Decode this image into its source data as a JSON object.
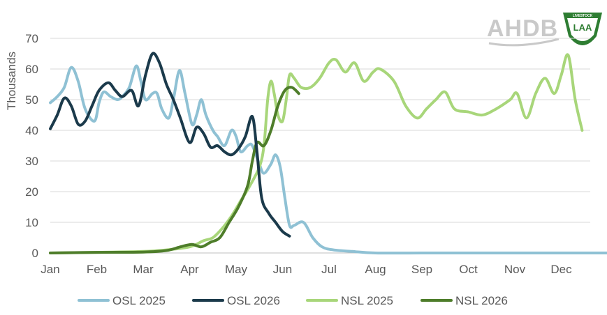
{
  "logos": {
    "ahdb": "AHDB",
    "laa": "LAA",
    "laa_ring": "LIVESTOCK"
  },
  "colors": {
    "osl2025": "#8fc1d4",
    "osl2026": "#1b3a4b",
    "nsl2025": "#a8d67a",
    "nsl2026": "#4e7d2a",
    "grid": "#d9d9d9",
    "text": "#595959"
  },
  "chart_data": {
    "type": "line",
    "ylabel": "Thousands",
    "ylim": [
      0,
      70
    ],
    "yticks": [
      0,
      10,
      20,
      30,
      40,
      50,
      60,
      70
    ],
    "xlim": [
      0,
      12
    ],
    "months": [
      "Jan",
      "Feb",
      "Mar",
      "Apr",
      "May",
      "Jun",
      "Jul",
      "Aug",
      "Sep",
      "Oct",
      "Nov",
      "Dec"
    ],
    "grid": "horizontal",
    "legend": "bottom",
    "series": [
      {
        "name": "OSL 2025",
        "color": "#8fc1d4",
        "points": [
          [
            0,
            49
          ],
          [
            0.15,
            51
          ],
          [
            0.3,
            54
          ],
          [
            0.45,
            60.5
          ],
          [
            0.6,
            56
          ],
          [
            0.75,
            47
          ],
          [
            0.95,
            43
          ],
          [
            1.05,
            49
          ],
          [
            1.15,
            52.5
          ],
          [
            1.3,
            51
          ],
          [
            1.45,
            50
          ],
          [
            1.55,
            51
          ],
          [
            1.7,
            54
          ],
          [
            1.85,
            61
          ],
          [
            1.95,
            56
          ],
          [
            2.05,
            50
          ],
          [
            2.2,
            52
          ],
          [
            2.3,
            52
          ],
          [
            2.4,
            47
          ],
          [
            2.55,
            44
          ],
          [
            2.65,
            50
          ],
          [
            2.78,
            59.5
          ],
          [
            2.9,
            52
          ],
          [
            3.05,
            42
          ],
          [
            3.15,
            45
          ],
          [
            3.25,
            50
          ],
          [
            3.35,
            45
          ],
          [
            3.5,
            40
          ],
          [
            3.6,
            38
          ],
          [
            3.75,
            35
          ],
          [
            3.9,
            40
          ],
          [
            4.0,
            38
          ],
          [
            4.1,
            33
          ],
          [
            4.25,
            35
          ],
          [
            4.35,
            35
          ],
          [
            4.5,
            29
          ],
          [
            4.6,
            26
          ],
          [
            4.75,
            29
          ],
          [
            4.85,
            32
          ],
          [
            4.95,
            28
          ],
          [
            5.05,
            18
          ],
          [
            5.15,
            9
          ],
          [
            5.25,
            9
          ],
          [
            5.45,
            10
          ],
          [
            5.65,
            5
          ],
          [
            5.85,
            2
          ],
          [
            6.1,
            1
          ],
          [
            6.5,
            0.5
          ],
          [
            7,
            0
          ],
          [
            8,
            0
          ],
          [
            9,
            0
          ],
          [
            10,
            0
          ],
          [
            11,
            0
          ],
          [
            12,
            0
          ]
        ]
      },
      {
        "name": "OSL 2026",
        "color": "#1b3a4b",
        "points": [
          [
            0,
            40.5
          ],
          [
            0.15,
            45
          ],
          [
            0.3,
            50.5
          ],
          [
            0.45,
            48
          ],
          [
            0.6,
            42
          ],
          [
            0.75,
            43
          ],
          [
            0.9,
            48
          ],
          [
            1.05,
            53
          ],
          [
            1.25,
            55.5
          ],
          [
            1.4,
            53
          ],
          [
            1.55,
            51
          ],
          [
            1.75,
            53
          ],
          [
            1.9,
            48
          ],
          [
            2.05,
            58
          ],
          [
            2.2,
            65
          ],
          [
            2.35,
            62
          ],
          [
            2.5,
            55
          ],
          [
            2.65,
            50
          ],
          [
            2.8,
            44
          ],
          [
            3.0,
            36
          ],
          [
            3.15,
            41
          ],
          [
            3.3,
            39
          ],
          [
            3.45,
            34.5
          ],
          [
            3.6,
            35
          ],
          [
            3.75,
            33
          ],
          [
            3.9,
            32
          ],
          [
            4.05,
            34
          ],
          [
            4.2,
            38
          ],
          [
            4.35,
            44.5
          ],
          [
            4.45,
            33
          ],
          [
            4.55,
            18
          ],
          [
            4.7,
            13
          ],
          [
            4.85,
            10
          ],
          [
            5.0,
            7
          ],
          [
            5.15,
            5.5
          ]
        ]
      },
      {
        "name": "NSL 2025",
        "color": "#a8d67a",
        "points": [
          [
            0,
            0
          ],
          [
            1,
            0.2
          ],
          [
            2,
            0.5
          ],
          [
            2.5,
            1
          ],
          [
            3,
            2
          ],
          [
            3.3,
            4
          ],
          [
            3.5,
            5
          ],
          [
            3.7,
            8
          ],
          [
            3.9,
            12
          ],
          [
            4.1,
            17
          ],
          [
            4.3,
            22
          ],
          [
            4.5,
            28
          ],
          [
            4.6,
            35
          ],
          [
            4.68,
            50
          ],
          [
            4.75,
            56
          ],
          [
            4.82,
            52
          ],
          [
            4.9,
            45
          ],
          [
            5.0,
            43
          ],
          [
            5.08,
            50
          ],
          [
            5.15,
            58
          ],
          [
            5.25,
            57
          ],
          [
            5.4,
            54
          ],
          [
            5.6,
            54
          ],
          [
            5.8,
            57
          ],
          [
            6.0,
            62
          ],
          [
            6.15,
            63
          ],
          [
            6.35,
            59
          ],
          [
            6.55,
            62
          ],
          [
            6.75,
            56
          ],
          [
            6.95,
            59
          ],
          [
            7.1,
            60
          ],
          [
            7.4,
            56
          ],
          [
            7.65,
            48
          ],
          [
            7.9,
            44
          ],
          [
            8.1,
            47
          ],
          [
            8.3,
            50
          ],
          [
            8.5,
            52.5
          ],
          [
            8.7,
            47
          ],
          [
            9.0,
            46
          ],
          [
            9.3,
            45
          ],
          [
            9.6,
            47
          ],
          [
            9.9,
            50
          ],
          [
            10.05,
            52
          ],
          [
            10.25,
            44
          ],
          [
            10.45,
            52
          ],
          [
            10.65,
            57
          ],
          [
            10.85,
            52
          ],
          [
            11.0,
            58
          ],
          [
            11.15,
            64.5
          ],
          [
            11.3,
            50
          ],
          [
            11.45,
            40
          ]
        ]
      },
      {
        "name": "NSL 2026",
        "color": "#4e7d2a",
        "points": [
          [
            0,
            0
          ],
          [
            1,
            0.2
          ],
          [
            2,
            0.3
          ],
          [
            2.5,
            0.8
          ],
          [
            2.8,
            2
          ],
          [
            3.05,
            2.8
          ],
          [
            3.25,
            2
          ],
          [
            3.45,
            3.5
          ],
          [
            3.65,
            5
          ],
          [
            3.85,
            10
          ],
          [
            4.05,
            15
          ],
          [
            4.25,
            22
          ],
          [
            4.35,
            30
          ],
          [
            4.45,
            36
          ],
          [
            4.6,
            35
          ],
          [
            4.75,
            40
          ],
          [
            4.9,
            48
          ],
          [
            5.05,
            53
          ],
          [
            5.2,
            54
          ],
          [
            5.35,
            52
          ]
        ]
      }
    ]
  }
}
